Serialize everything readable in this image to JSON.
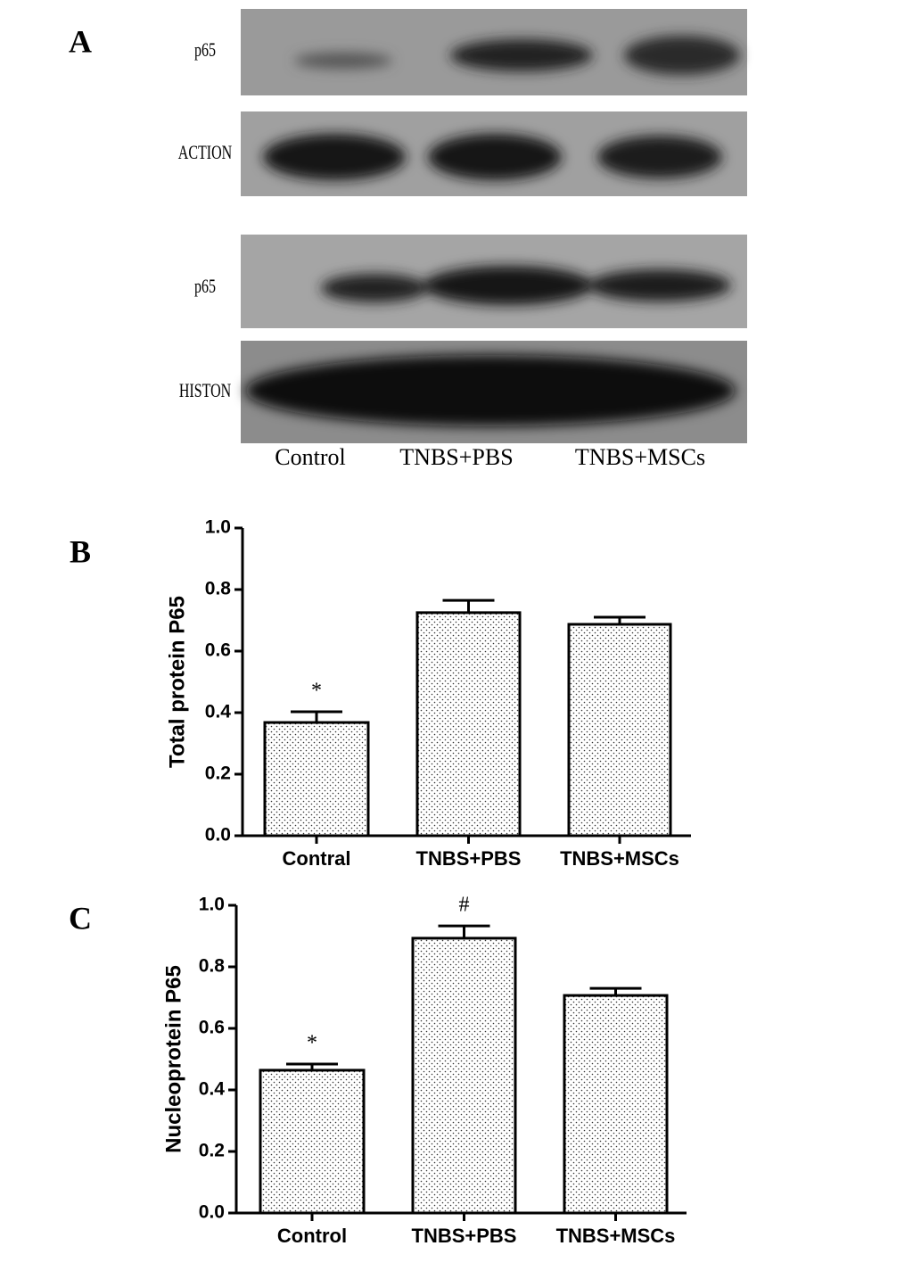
{
  "panel_labels": [
    "A",
    "B",
    "C"
  ],
  "blot": {
    "rows": [
      "p65",
      "ACTION",
      "p65",
      "HISTON"
    ],
    "lanes": [
      "Control",
      "TNBS+PBS",
      "TNBS+MSCs"
    ]
  },
  "chart_data": [
    {
      "type": "bar",
      "y_label": "Total protein P65",
      "categories": [
        "Contral",
        "TNBS+PBS",
        "TNBS+MSCs"
      ],
      "values": [
        0.368,
        0.725,
        0.687
      ],
      "errors": [
        0.035,
        0.04,
        0.023
      ],
      "value_annotations": [
        "*",
        null,
        null
      ],
      "ylim": [
        0,
        1
      ],
      "yticks": [
        {
          "value": 0,
          "label": "0.0"
        },
        0.2,
        0.4,
        0.6,
        0.8,
        {
          "value": 1,
          "label": "1.0"
        }
      ]
    },
    {
      "type": "bar",
      "y_label": "Nucleoprotein P65",
      "categories": [
        "Control",
        "TNBS+PBS",
        "TNBS+MSCs"
      ],
      "values": [
        0.464,
        0.893,
        0.707
      ],
      "errors": [
        0.02,
        0.04,
        0.023
      ],
      "value_annotations": [
        "*",
        "#",
        null
      ],
      "ylim": [
        0,
        1
      ],
      "yticks": [
        {
          "value": 0,
          "label": "0.0"
        },
        0.2,
        0.4,
        0.6,
        0.8,
        {
          "value": 1,
          "label": "1.0"
        }
      ]
    }
  ]
}
